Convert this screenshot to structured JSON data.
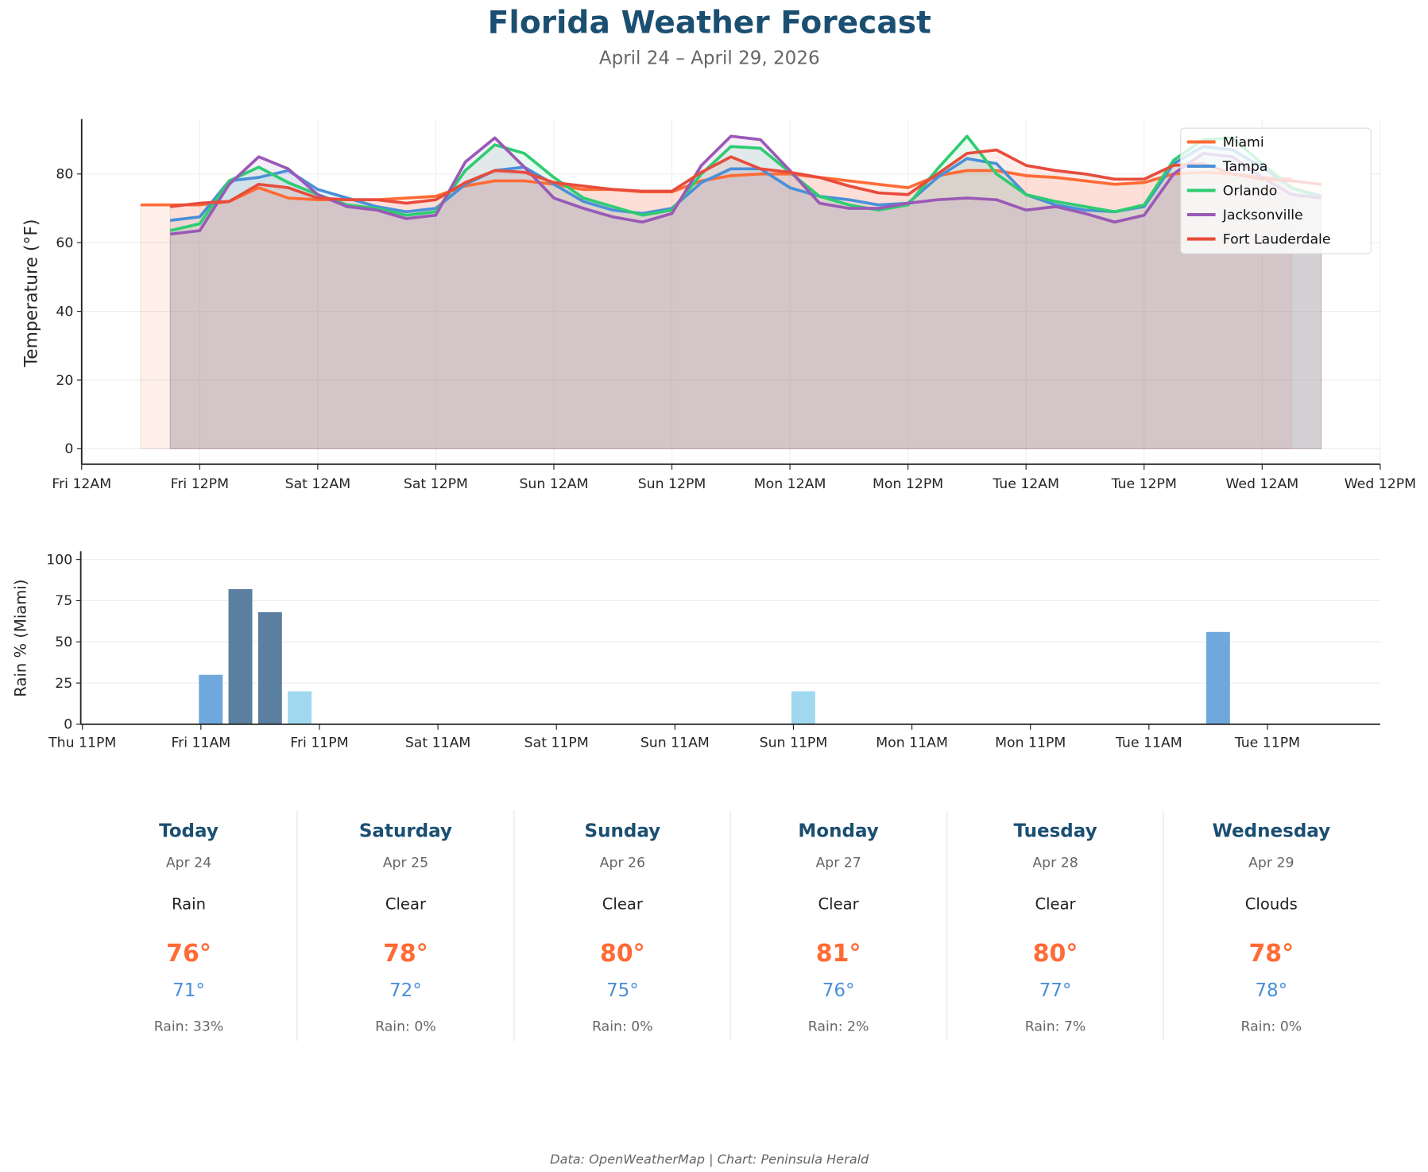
{
  "title": "Florida Weather Forecast",
  "subtitle": "April 24 – April 29, 2026",
  "footer": "Data: OpenWeatherMap | Chart: Peninsula Herald",
  "chart_data": [
    {
      "type": "area",
      "ylabel": "Temperature (°F)",
      "ylim": [
        -4.5,
        96
      ],
      "xlim": [
        "2026-04-24T00:00",
        "2026-04-29T12:00"
      ],
      "yticks": [
        0,
        20,
        40,
        60,
        80
      ],
      "xticks": [
        {
          "t": "2026-04-24T00:00",
          "label": "Fri 12AM"
        },
        {
          "t": "2026-04-24T12:00",
          "label": "Fri 12PM"
        },
        {
          "t": "2026-04-25T00:00",
          "label": "Sat 12AM"
        },
        {
          "t": "2026-04-25T12:00",
          "label": "Sat 12PM"
        },
        {
          "t": "2026-04-26T00:00",
          "label": "Sun 12AM"
        },
        {
          "t": "2026-04-26T12:00",
          "label": "Sun 12PM"
        },
        {
          "t": "2026-04-27T00:00",
          "label": "Mon 12AM"
        },
        {
          "t": "2026-04-27T12:00",
          "label": "Mon 12PM"
        },
        {
          "t": "2026-04-28T00:00",
          "label": "Tue 12AM"
        },
        {
          "t": "2026-04-28T12:00",
          "label": "Tue 12PM"
        },
        {
          "t": "2026-04-29T00:00",
          "label": "Wed 12AM"
        },
        {
          "t": "2026-04-29T12:00",
          "label": "Wed 12PM"
        }
      ],
      "grid": true,
      "legend": "top-right",
      "times": [
        "2026-04-24T06:00",
        "2026-04-24T09:00",
        "2026-04-24T12:00",
        "2026-04-24T15:00",
        "2026-04-24T18:00",
        "2026-04-24T21:00",
        "2026-04-25T00:00",
        "2026-04-25T03:00",
        "2026-04-25T06:00",
        "2026-04-25T09:00",
        "2026-04-25T12:00",
        "2026-04-25T15:00",
        "2026-04-25T18:00",
        "2026-04-25T21:00",
        "2026-04-26T00:00",
        "2026-04-26T03:00",
        "2026-04-26T06:00",
        "2026-04-26T09:00",
        "2026-04-26T12:00",
        "2026-04-26T15:00",
        "2026-04-26T18:00",
        "2026-04-26T21:00",
        "2026-04-27T00:00",
        "2026-04-27T03:00",
        "2026-04-27T06:00",
        "2026-04-27T09:00",
        "2026-04-27T12:00",
        "2026-04-27T15:00",
        "2026-04-27T18:00",
        "2026-04-27T21:00",
        "2026-04-28T00:00",
        "2026-04-28T03:00",
        "2026-04-28T06:00",
        "2026-04-28T09:00",
        "2026-04-28T12:00",
        "2026-04-28T15:00",
        "2026-04-28T18:00",
        "2026-04-28T21:00",
        "2026-04-29T00:00",
        "2026-04-29T03:00",
        "2026-04-29T06:00"
      ],
      "series": [
        {
          "name": "Miami",
          "color": "#ff6b35",
          "values": [
            71,
            71,
            71,
            72,
            76,
            73,
            72.5,
            72.5,
            72.5,
            73,
            73.5,
            76.5,
            78,
            78,
            77,
            75.5,
            75.5,
            74.8,
            74.8,
            78,
            79.5,
            80,
            80,
            79,
            78,
            77,
            76,
            79.5,
            81,
            81,
            79.5,
            79,
            78,
            77,
            77.5,
            80,
            80.5,
            80,
            79,
            78.5,
            null
          ]
        },
        {
          "name": "Tampa",
          "color": "#4a90d9",
          "values": [
            null,
            66.5,
            67.5,
            78,
            79,
            81,
            75.5,
            73,
            70.5,
            69,
            70,
            77,
            81,
            82,
            77,
            72,
            69.5,
            68.5,
            70,
            77.5,
            81.5,
            81.5,
            76,
            73.5,
            72.5,
            71,
            71.5,
            79,
            84.5,
            83,
            74,
            71,
            69.5,
            69,
            70.5,
            83,
            88,
            87,
            82,
            76,
            73.5
          ]
        },
        {
          "name": "Orlando",
          "color": "#2ecc71",
          "values": [
            null,
            63.5,
            65.5,
            78,
            82,
            77.5,
            74,
            71,
            70,
            68,
            69,
            81,
            88.5,
            86,
            79,
            73,
            70.5,
            68,
            69.5,
            80,
            88,
            87.5,
            80.5,
            73.5,
            71,
            69.5,
            71,
            81.5,
            91,
            80,
            74,
            72,
            70.5,
            69,
            71,
            84,
            90,
            90.5,
            83,
            76,
            73
          ]
        },
        {
          "name": "Jacksonville",
          "color": "#9b59b6",
          "values": [
            null,
            62.5,
            63.5,
            77,
            85,
            81.5,
            74,
            70.5,
            69.5,
            67,
            68,
            83.5,
            90.5,
            82,
            73,
            70,
            67.5,
            66,
            68.5,
            82.5,
            91,
            90,
            81,
            71.5,
            70,
            70,
            71.5,
            72.5,
            73,
            72.5,
            69.5,
            70.5,
            68.5,
            66,
            68,
            80,
            86,
            85,
            79,
            74,
            73
          ]
        },
        {
          "name": "Fort Lauderdale",
          "color": "#e74c3c",
          "values": [
            null,
            70.5,
            71.5,
            72,
            77,
            76,
            73,
            72.5,
            72.5,
            71.5,
            72.5,
            77.5,
            81,
            80.5,
            77.5,
            76.5,
            75.5,
            75,
            75,
            80.5,
            85,
            81.5,
            80.5,
            79,
            76.5,
            74.5,
            74,
            80,
            86,
            87,
            82.5,
            81,
            80,
            78.5,
            78.5,
            82.5,
            83,
            80,
            78.5,
            78,
            77
          ]
        }
      ]
    },
    {
      "type": "bar",
      "ylabel": "Rain % (Miami)",
      "ylim": [
        0,
        105
      ],
      "xlim": [
        "2026-04-23T22:50",
        "2026-04-29T10:25"
      ],
      "yticks": [
        0,
        25,
        50,
        75,
        100
      ],
      "xticks": [
        {
          "t": "2026-04-23T23:00",
          "label": "Thu 11PM"
        },
        {
          "t": "2026-04-24T11:00",
          "label": "Fri 11AM"
        },
        {
          "t": "2026-04-24T23:00",
          "label": "Fri 11PM"
        },
        {
          "t": "2026-04-25T11:00",
          "label": "Sat 11AM"
        },
        {
          "t": "2026-04-25T23:00",
          "label": "Sat 11PM"
        },
        {
          "t": "2026-04-26T11:00",
          "label": "Sun 11AM"
        },
        {
          "t": "2026-04-26T23:00",
          "label": "Sun 11PM"
        },
        {
          "t": "2026-04-27T11:00",
          "label": "Mon 11AM"
        },
        {
          "t": "2026-04-27T23:00",
          "label": "Mon 11PM"
        },
        {
          "t": "2026-04-28T11:00",
          "label": "Tue 11AM"
        },
        {
          "t": "2026-04-28T23:00",
          "label": "Tue 11PM"
        }
      ],
      "grid": true,
      "bars": [
        {
          "t": "2026-04-24T12:00",
          "value": 30,
          "color": "#6fa8dc"
        },
        {
          "t": "2026-04-24T15:00",
          "value": 82,
          "color": "#5a7fa0"
        },
        {
          "t": "2026-04-24T18:00",
          "value": 68,
          "color": "#5a7fa0"
        },
        {
          "t": "2026-04-24T21:00",
          "value": 20,
          "color": "#a0d8ef"
        },
        {
          "t": "2026-04-27T00:00",
          "value": 20,
          "color": "#a0d8ef"
        },
        {
          "t": "2026-04-28T18:00",
          "value": 56,
          "color": "#6fa8dc"
        }
      ]
    }
  ],
  "forecast": [
    {
      "day": "Today",
      "date": "Apr 24",
      "condition": "Rain",
      "high": "76°",
      "low": "71°",
      "rain": "Rain: 33%"
    },
    {
      "day": "Saturday",
      "date": "Apr 25",
      "condition": "Clear",
      "high": "78°",
      "low": "72°",
      "rain": "Rain: 0%"
    },
    {
      "day": "Sunday",
      "date": "Apr 26",
      "condition": "Clear",
      "high": "80°",
      "low": "75°",
      "rain": "Rain: 0%"
    },
    {
      "day": "Monday",
      "date": "Apr 27",
      "condition": "Clear",
      "high": "81°",
      "low": "76°",
      "rain": "Rain: 2%"
    },
    {
      "day": "Tuesday",
      "date": "Apr 28",
      "condition": "Clear",
      "high": "80°",
      "low": "77°",
      "rain": "Rain: 7%"
    },
    {
      "day": "Wednesday",
      "date": "Apr 29",
      "condition": "Clouds",
      "high": "78°",
      "low": "78°",
      "rain": "Rain: 0%"
    }
  ],
  "colors": {
    "title": "#1b4f72",
    "high": "#ff6b35",
    "low": "#4a90d9"
  }
}
